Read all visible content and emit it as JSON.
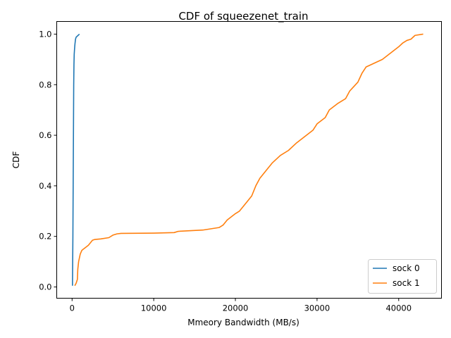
{
  "chart_data": {
    "type": "line",
    "title": "CDF of squeezenet_train",
    "xlabel": "Mmeory Bandwidth (MB/s)",
    "ylabel": "CDF",
    "xlim": [
      -1880,
      45240
    ],
    "ylim": [
      -0.0445,
      1.05
    ],
    "xticks": [
      0,
      10000,
      20000,
      30000,
      40000
    ],
    "yticks": [
      0.0,
      0.2,
      0.4,
      0.6,
      0.8,
      1.0
    ],
    "xtick_labels": [
      "0",
      "10000",
      "20000",
      "30000",
      "40000"
    ],
    "ytick_labels": [
      "0.0",
      "0.2",
      "0.4",
      "0.6",
      "0.8",
      "1.0"
    ],
    "grid": false,
    "legend_position": "lower-right",
    "series": [
      {
        "name": "sock 0",
        "color": "#1f77b4",
        "x": [
          50,
          100,
          150,
          180,
          200,
          230,
          260,
          300,
          350,
          420,
          500,
          600,
          700,
          800,
          900
        ],
        "y": [
          0.005,
          0.2,
          0.5,
          0.68,
          0.8,
          0.88,
          0.92,
          0.94,
          0.96,
          0.98,
          0.988,
          0.991,
          0.994,
          0.997,
          1.0
        ]
      },
      {
        "name": "sock 1",
        "color": "#ff7f0e",
        "x": [
          330,
          500,
          650,
          700,
          800,
          900,
          1000,
          1200,
          1400,
          1600,
          2000,
          2500,
          2800,
          3500,
          4500,
          5000,
          5500,
          6000,
          10000,
          12500,
          13000,
          16000,
          18000,
          18500,
          19000,
          20000,
          20500,
          21000,
          21500,
          22000,
          22500,
          23000,
          24000,
          24500,
          25500,
          26500,
          27500,
          28500,
          29500,
          30000,
          31000,
          31500,
          32500,
          33500,
          34000,
          35000,
          35500,
          36000,
          37000,
          38000,
          39000,
          40000,
          40500,
          41000,
          41500,
          42000,
          43000
        ],
        "y": [
          0.005,
          0.015,
          0.03,
          0.07,
          0.1,
          0.115,
          0.13,
          0.145,
          0.15,
          0.155,
          0.165,
          0.185,
          0.188,
          0.19,
          0.195,
          0.205,
          0.21,
          0.212,
          0.213,
          0.215,
          0.22,
          0.225,
          0.235,
          0.245,
          0.265,
          0.29,
          0.3,
          0.32,
          0.34,
          0.36,
          0.4,
          0.43,
          0.47,
          0.49,
          0.52,
          0.54,
          0.57,
          0.595,
          0.62,
          0.645,
          0.67,
          0.7,
          0.725,
          0.745,
          0.775,
          0.81,
          0.845,
          0.87,
          0.885,
          0.9,
          0.925,
          0.95,
          0.965,
          0.975,
          0.98,
          0.995,
          1.0
        ]
      }
    ]
  }
}
